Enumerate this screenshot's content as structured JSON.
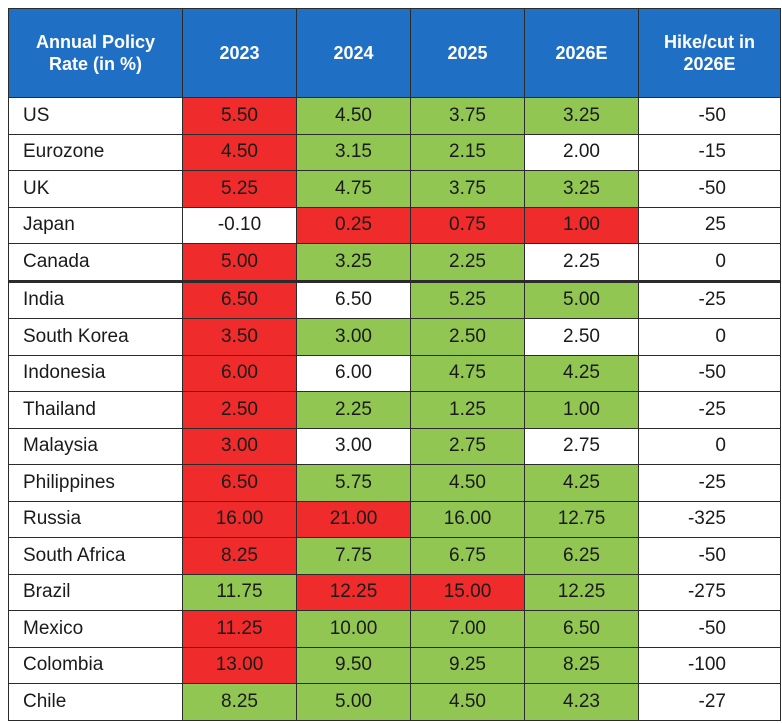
{
  "colors": {
    "header_bg": "#1f6fc5",
    "red": "#ef2b2b",
    "green": "#92c653",
    "white": "#ffffff"
  },
  "table": {
    "headers": [
      "Annual Policy\nRate (in %)",
      "2023",
      "2024",
      "2025",
      "2026E",
      "Hike/cut in\n2026E"
    ],
    "rows": [
      {
        "country": "US",
        "values": [
          "5.50",
          "4.50",
          "3.75",
          "3.25"
        ],
        "colors": [
          "red",
          "green",
          "green",
          "green"
        ],
        "change": "-50"
      },
      {
        "country": "Eurozone",
        "values": [
          "4.50",
          "3.15",
          "2.15",
          "2.00"
        ],
        "colors": [
          "red",
          "green",
          "green",
          "white"
        ],
        "change": "-15"
      },
      {
        "country": "UK",
        "values": [
          "5.25",
          "4.75",
          "3.75",
          "3.25"
        ],
        "colors": [
          "red",
          "green",
          "green",
          "green"
        ],
        "change": "-50"
      },
      {
        "country": "Japan",
        "values": [
          "-0.10",
          "0.25",
          "0.75",
          "1.00"
        ],
        "colors": [
          "white",
          "red",
          "red",
          "red"
        ],
        "change": "25"
      },
      {
        "country": "Canada",
        "values": [
          "5.00",
          "3.25",
          "2.25",
          "2.25"
        ],
        "colors": [
          "red",
          "green",
          "green",
          "white"
        ],
        "change": "0"
      },
      {
        "country": "India",
        "values": [
          "6.50",
          "6.50",
          "5.25",
          "5.00"
        ],
        "colors": [
          "red",
          "white",
          "green",
          "green"
        ],
        "change": "-25",
        "group_break": true
      },
      {
        "country": "South Korea",
        "values": [
          "3.50",
          "3.00",
          "2.50",
          "2.50"
        ],
        "colors": [
          "red",
          "green",
          "green",
          "white"
        ],
        "change": "0"
      },
      {
        "country": "Indonesia",
        "values": [
          "6.00",
          "6.00",
          "4.75",
          "4.25"
        ],
        "colors": [
          "red",
          "white",
          "green",
          "green"
        ],
        "change": "-50"
      },
      {
        "country": "Thailand",
        "values": [
          "2.50",
          "2.25",
          "1.25",
          "1.00"
        ],
        "colors": [
          "red",
          "green",
          "green",
          "green"
        ],
        "change": "-25"
      },
      {
        "country": "Malaysia",
        "values": [
          "3.00",
          "3.00",
          "2.75",
          "2.75"
        ],
        "colors": [
          "red",
          "white",
          "green",
          "white"
        ],
        "change": "0"
      },
      {
        "country": "Philippines",
        "values": [
          "6.50",
          "5.75",
          "4.50",
          "4.25"
        ],
        "colors": [
          "red",
          "green",
          "green",
          "green"
        ],
        "change": "-25"
      },
      {
        "country": "Russia",
        "values": [
          "16.00",
          "21.00",
          "16.00",
          "12.75"
        ],
        "colors": [
          "red",
          "red",
          "green",
          "green"
        ],
        "change": "-325"
      },
      {
        "country": "South Africa",
        "values": [
          "8.25",
          "7.75",
          "6.75",
          "6.25"
        ],
        "colors": [
          "red",
          "green",
          "green",
          "green"
        ],
        "change": "-50"
      },
      {
        "country": "Brazil",
        "values": [
          "11.75",
          "12.25",
          "15.00",
          "12.25"
        ],
        "colors": [
          "green",
          "red",
          "red",
          "green"
        ],
        "change": "-275"
      },
      {
        "country": "Mexico",
        "values": [
          "11.25",
          "10.00",
          "7.00",
          "6.50"
        ],
        "colors": [
          "red",
          "green",
          "green",
          "green"
        ],
        "change": "-50"
      },
      {
        "country": "Colombia",
        "values": [
          "13.00",
          "9.50",
          "9.25",
          "8.25"
        ],
        "colors": [
          "red",
          "green",
          "green",
          "green"
        ],
        "change": "-100"
      },
      {
        "country": "Chile",
        "values": [
          "8.25",
          "5.00",
          "4.50",
          "4.23"
        ],
        "colors": [
          "green",
          "green",
          "green",
          "green"
        ],
        "change": "-27"
      }
    ]
  },
  "chart_data": {
    "type": "table",
    "columns": [
      "Annual Policy Rate (in %)",
      "2023",
      "2024",
      "2025",
      "2026E",
      "Hike/cut in 2026E"
    ],
    "rows": [
      [
        "US",
        5.5,
        4.5,
        3.75,
        3.25,
        -50
      ],
      [
        "Eurozone",
        4.5,
        3.15,
        2.15,
        2.0,
        -15
      ],
      [
        "UK",
        5.25,
        4.75,
        3.75,
        3.25,
        -50
      ],
      [
        "Japan",
        -0.1,
        0.25,
        0.75,
        1.0,
        25
      ],
      [
        "Canada",
        5.0,
        3.25,
        2.25,
        2.25,
        0
      ],
      [
        "India",
        6.5,
        6.5,
        5.25,
        5.0,
        -25
      ],
      [
        "South Korea",
        3.5,
        3.0,
        2.5,
        2.5,
        0
      ],
      [
        "Indonesia",
        6.0,
        6.0,
        4.75,
        4.25,
        -50
      ],
      [
        "Thailand",
        2.5,
        2.25,
        1.25,
        1.0,
        -25
      ],
      [
        "Malaysia",
        3.0,
        3.0,
        2.75,
        2.75,
        0
      ],
      [
        "Philippines",
        6.5,
        5.75,
        4.5,
        4.25,
        -25
      ],
      [
        "Russia",
        16.0,
        21.0,
        16.0,
        12.75,
        -325
      ],
      [
        "South Africa",
        8.25,
        7.75,
        6.75,
        6.25,
        -50
      ],
      [
        "Brazil",
        11.75,
        12.25,
        15.0,
        12.25,
        -275
      ],
      [
        "Mexico",
        11.25,
        10.0,
        7.0,
        6.5,
        -50
      ],
      [
        "Colombia",
        13.0,
        9.5,
        9.25,
        8.25,
        -100
      ],
      [
        "Chile",
        8.25,
        5.0,
        4.5,
        4.23,
        -27
      ]
    ]
  }
}
